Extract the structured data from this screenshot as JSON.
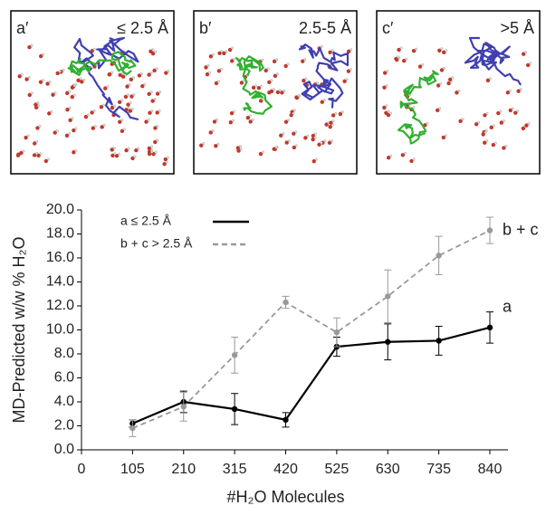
{
  "panels": [
    {
      "label": "a′",
      "range": "≤ 2.5 Å"
    },
    {
      "label": "b′",
      "range": "2.5-5 Å"
    },
    {
      "label": "c′",
      "range": ">5 Å"
    }
  ],
  "chart_data": {
    "type": "line",
    "x_label": "#H₂O Molecules",
    "y_label": "MD-Predicted w/w % H₂O",
    "x": [
      105,
      210,
      315,
      420,
      525,
      630,
      735,
      840
    ],
    "xlim": [
      0,
      840
    ],
    "xticks": [
      0,
      105,
      210,
      315,
      420,
      525,
      630,
      735,
      840
    ],
    "ylim": [
      0,
      20
    ],
    "yticks": [
      {
        "value": 0,
        "label": "0.0"
      },
      {
        "value": 2,
        "label": "2.0"
      },
      {
        "value": 4,
        "label": "4.0"
      },
      {
        "value": 6,
        "label": "6.0"
      },
      {
        "value": 8,
        "label": "8.0"
      },
      {
        "value": 10,
        "label": "10.0"
      },
      {
        "value": 12,
        "label": "12.0"
      },
      {
        "value": 14,
        "label": "14.0"
      },
      {
        "value": 16,
        "label": "16.0"
      },
      {
        "value": 18,
        "label": "18.0"
      },
      {
        "value": 20,
        "label": "20.0"
      }
    ],
    "grid": false,
    "legend": "top-left",
    "series": [
      {
        "name": "a ≤ 2.5 Å",
        "end_label": "a",
        "color": "#000000",
        "dashed": false,
        "values": [
          2.2,
          4.0,
          3.4,
          2.5,
          8.6,
          9.0,
          9.1,
          10.2
        ],
        "errors": [
          0.3,
          0.9,
          1.3,
          0.6,
          0.8,
          1.5,
          1.2,
          1.3
        ]
      },
      {
        "name": "b + c > 2.5 Å",
        "end_label": "b + c",
        "color": "#999999",
        "dashed": true,
        "values": [
          1.8,
          3.6,
          7.9,
          12.3,
          9.8,
          12.8,
          16.2,
          18.3
        ],
        "errors": [
          0.7,
          1.2,
          1.5,
          0.5,
          1.2,
          2.2,
          1.6,
          1.1
        ]
      }
    ]
  }
}
